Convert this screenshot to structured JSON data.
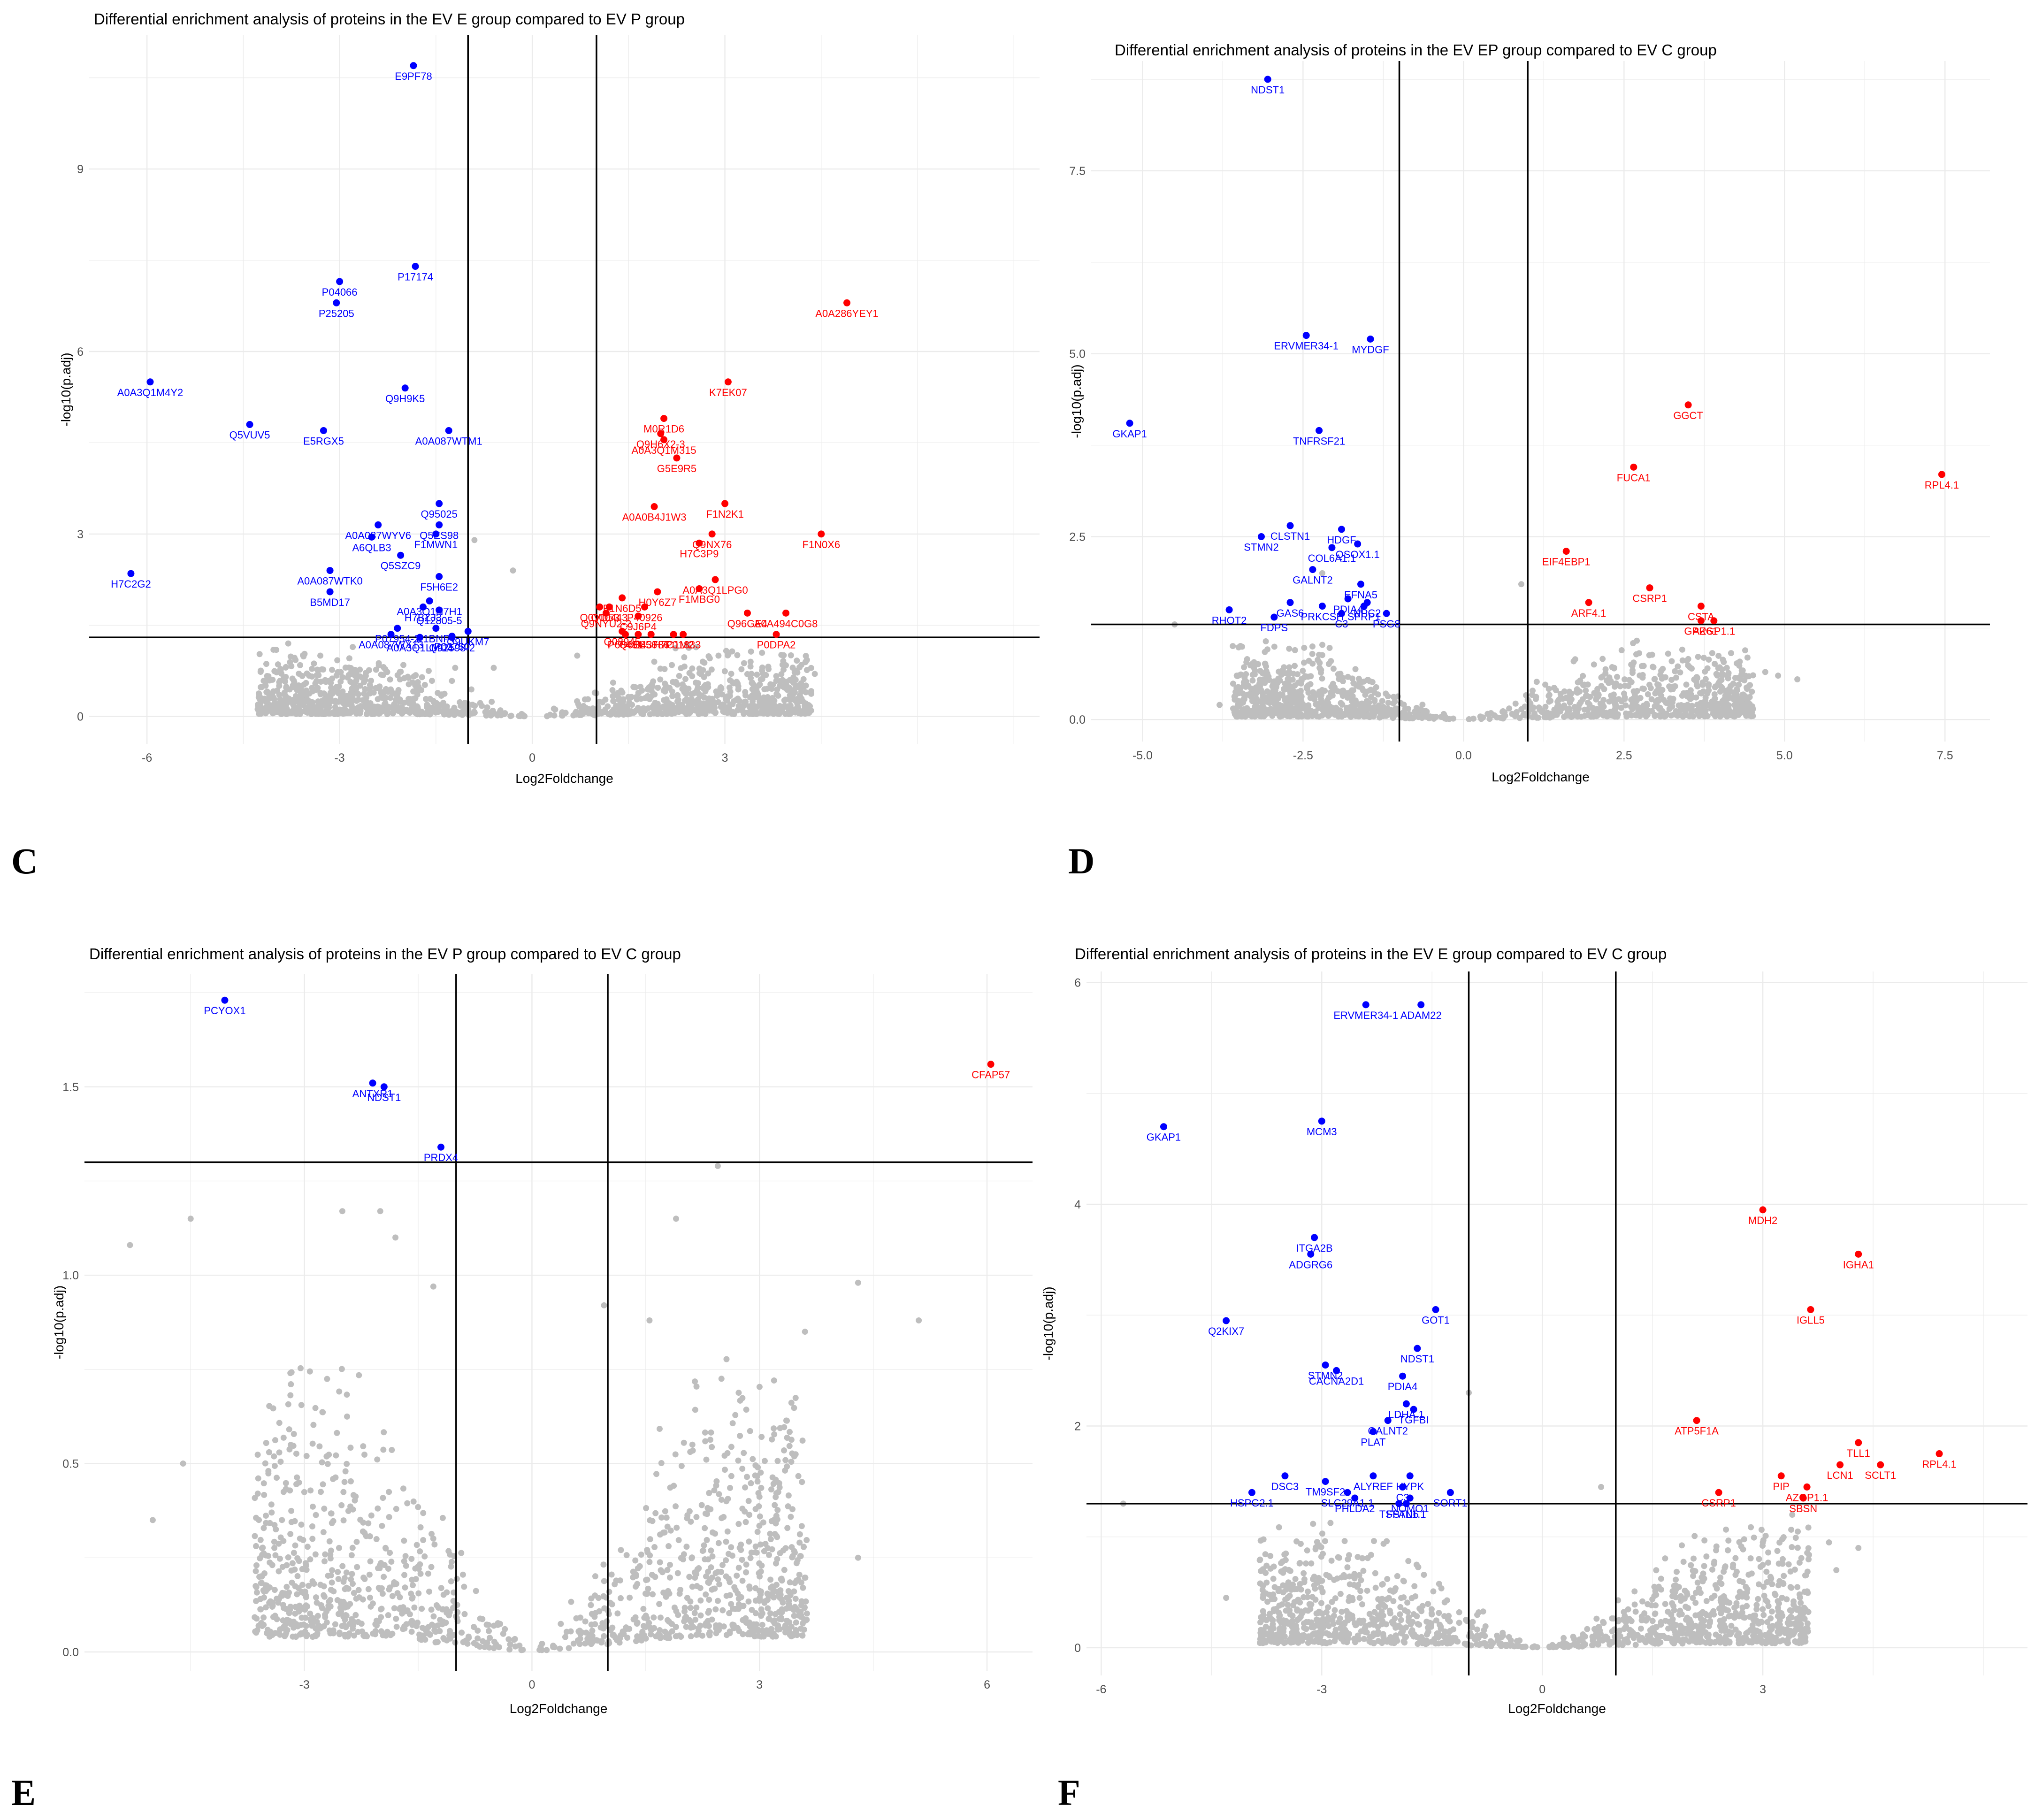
{
  "colors": {
    "down": "#0000ff",
    "up": "#ff0000",
    "ns": "#bebebe",
    "grid": "#ebebeb",
    "line": "#000000"
  },
  "chart_data": [
    {
      "type": "scatter",
      "panel": "C",
      "title": "Differential enrichment analysis of proteins in the EV E group compared to EV P group",
      "xlabel": "Log2Foldchange",
      "ylabel": "-log10(p.adj)",
      "xlim": [
        -6.9,
        7.9
      ],
      "ylim": [
        -0.45,
        11.2
      ],
      "xticks": [
        -6,
        -3,
        0,
        3
      ],
      "yticks": [
        0,
        3,
        6,
        9
      ],
      "vlines": [
        -1,
        1
      ],
      "hline": 1.3,
      "cloud_ymax": 1.2,
      "ns_extra": [
        [
          -3.8,
          1.2
        ],
        [
          -3.3,
          1.0
        ],
        [
          -1.2,
          0.8
        ],
        [
          -0.9,
          2.9
        ],
        [
          -0.6,
          0.8
        ],
        [
          -0.3,
          2.4
        ],
        [
          0.7,
          1.0
        ],
        [
          1.9,
          0.9
        ],
        [
          2.9,
          1.0
        ],
        [
          3.4,
          0.9
        ],
        [
          4.4,
          0.7
        ]
      ],
      "down": [
        {
          "label": "E9PF78",
          "x": -1.85,
          "y": 10.7
        },
        {
          "label": "P04066",
          "x": -3.0,
          "y": 7.15
        },
        {
          "label": "P17174",
          "x": -1.82,
          "y": 7.4
        },
        {
          "label": "P25205",
          "x": -3.05,
          "y": 6.8
        },
        {
          "label": "A0A3Q1M4Y2",
          "x": -5.95,
          "y": 5.5
        },
        {
          "label": "Q9H9K5",
          "x": -1.98,
          "y": 5.4
        },
        {
          "label": "Q5VUV5",
          "x": -4.4,
          "y": 4.8
        },
        {
          "label": "E5RGX5",
          "x": -3.25,
          "y": 4.7
        },
        {
          "label": "A0A087WTM1",
          "x": -1.3,
          "y": 4.7
        },
        {
          "label": "Q95025",
          "x": -1.45,
          "y": 3.5
        },
        {
          "label": "Q5ES98",
          "x": -1.45,
          "y": 3.15
        },
        {
          "label": "A0A087WYV6",
          "x": -2.4,
          "y": 3.15
        },
        {
          "label": "F1MWN1",
          "x": -1.5,
          "y": 3.0
        },
        {
          "label": "A6QLB3",
          "x": -2.5,
          "y": 2.95
        },
        {
          "label": "Q5SZC9",
          "x": -2.05,
          "y": 2.65
        },
        {
          "label": "A0A087WTK0",
          "x": -3.15,
          "y": 2.4
        },
        {
          "label": "H7C2G2",
          "x": -6.25,
          "y": 2.35
        },
        {
          "label": "F5H6E2",
          "x": -1.45,
          "y": 2.3
        },
        {
          "label": "A0A3Q1N7H1",
          "x": -1.6,
          "y": 1.9
        },
        {
          "label": "B5MD17",
          "x": -3.15,
          "y": 2.05
        },
        {
          "label": "H7BZJ3",
          "x": -1.7,
          "y": 1.8
        },
        {
          "label": "Q12805-5",
          "x": -1.45,
          "y": 1.75
        },
        {
          "label": "Q9UKM7",
          "x": -1.0,
          "y": 1.4
        },
        {
          "label": "E1BNP7",
          "x": -1.5,
          "y": 1.45
        },
        {
          "label": "P07954-2",
          "x": -2.1,
          "y": 1.45
        },
        {
          "label": "P02750",
          "x": -1.25,
          "y": 1.32
        },
        {
          "label": "A0A087WX13",
          "x": -2.2,
          "y": 1.35
        },
        {
          "label": "A0A3Q1LMU4",
          "x": -1.75,
          "y": 1.3
        },
        {
          "label": "Q92598-2",
          "x": -1.25,
          "y": 1.3
        }
      ],
      "up": [
        {
          "label": "A0A286YEY1",
          "x": 4.9,
          "y": 6.8
        },
        {
          "label": "K7EK07",
          "x": 3.05,
          "y": 5.5
        },
        {
          "label": "M0R1D6",
          "x": 2.05,
          "y": 4.9
        },
        {
          "label": "Q9H6X2-3",
          "x": 2.0,
          "y": 4.65
        },
        {
          "label": "A0A3Q1M315",
          "x": 2.05,
          "y": 4.55
        },
        {
          "label": "G5E9R5",
          "x": 2.25,
          "y": 4.25
        },
        {
          "label": "F1N2K1",
          "x": 3.0,
          "y": 3.5
        },
        {
          "label": "A0A0B4J1W3",
          "x": 1.9,
          "y": 3.45
        },
        {
          "label": "F1N0X6",
          "x": 4.5,
          "y": 3.0
        },
        {
          "label": "Q9NX76",
          "x": 2.8,
          "y": 3.0
        },
        {
          "label": "H7C3P9",
          "x": 2.6,
          "y": 2.85
        },
        {
          "label": "A0A3Q1LPG0",
          "x": 2.85,
          "y": 2.25
        },
        {
          "label": "H0Y6Z7",
          "x": 1.95,
          "y": 2.05
        },
        {
          "label": "F1MBG0",
          "x": 2.6,
          "y": 2.1
        },
        {
          "label": "F1N6D5",
          "x": 1.4,
          "y": 1.95
        },
        {
          "label": "Q0VD53",
          "x": 1.05,
          "y": 1.8
        },
        {
          "label": "Q00443",
          "x": 1.2,
          "y": 1.8
        },
        {
          "label": "P40926",
          "x": 1.75,
          "y": 1.8
        },
        {
          "label": "Q9NYU2-2",
          "x": 1.15,
          "y": 1.7
        },
        {
          "label": "Q96GE4",
          "x": 3.35,
          "y": 1.7
        },
        {
          "label": "A0A494C0G8",
          "x": 3.95,
          "y": 1.7
        },
        {
          "label": "C9J6P4",
          "x": 1.65,
          "y": 1.65
        },
        {
          "label": "H7C1M2",
          "x": 2.2,
          "y": 1.35
        },
        {
          "label": "Q08945",
          "x": 1.4,
          "y": 1.4
        },
        {
          "label": "P0DPA2",
          "x": 3.8,
          "y": 1.35
        },
        {
          "label": "P68431",
          "x": 1.45,
          "y": 1.35
        },
        {
          "label": "Q6B856",
          "x": 1.65,
          "y": 1.35
        },
        {
          "label": "P01833",
          "x": 2.35,
          "y": 1.35
        },
        {
          "label": "O43786",
          "x": 1.85,
          "y": 1.35
        }
      ]
    },
    {
      "type": "scatter",
      "panel": "D",
      "title": "Differential enrichment analysis of proteins in the EV EP group compared to EV C group",
      "xlabel": "Log2Foldchange",
      "ylabel": "-log10(p.adj)",
      "xlim": [
        -5.8,
        8.2
      ],
      "ylim": [
        -0.3,
        9.0
      ],
      "xticks": [
        -5.0,
        -2.5,
        0.0,
        2.5,
        5.0,
        7.5
      ],
      "yticks": [
        0.0,
        2.5,
        5.0,
        7.5
      ],
      "vlines": [
        -1,
        1
      ],
      "hline": 1.3,
      "cloud_ymax": 1.1,
      "ns_extra": [
        [
          -4.5,
          1.3
        ],
        [
          -3.8,
          0.2
        ],
        [
          -2.2,
          2.0
        ],
        [
          0.9,
          1.85
        ],
        [
          3.8,
          0.7
        ],
        [
          4.7,
          0.65
        ],
        [
          5.2,
          0.55
        ],
        [
          4.9,
          0.6
        ]
      ],
      "down": [
        {
          "label": "NDST1",
          "x": -3.05,
          "y": 8.75
        },
        {
          "label": "ERVMER34-1",
          "x": -2.45,
          "y": 5.25
        },
        {
          "label": "MYDGF",
          "x": -1.45,
          "y": 5.2
        },
        {
          "label": "GKAP1",
          "x": -5.2,
          "y": 4.05
        },
        {
          "label": "TNFRSF21",
          "x": -2.25,
          "y": 3.95
        },
        {
          "label": "CLSTN1",
          "x": -2.7,
          "y": 2.65
        },
        {
          "label": "HDGF",
          "x": -1.9,
          "y": 2.6
        },
        {
          "label": "STMN2",
          "x": -3.15,
          "y": 2.5
        },
        {
          "label": "QSOX1.1",
          "x": -1.65,
          "y": 2.4
        },
        {
          "label": "COL6A1.1",
          "x": -2.05,
          "y": 2.35
        },
        {
          "label": "GALNT2",
          "x": -2.35,
          "y": 2.05
        },
        {
          "label": "EFNA5",
          "x": -1.6,
          "y": 1.85
        },
        {
          "label": "GAS6",
          "x": -2.7,
          "y": 1.6
        },
        {
          "label": "PDIA4",
          "x": -1.8,
          "y": 1.65
        },
        {
          "label": "NPC2",
          "x": -1.5,
          "y": 1.6
        },
        {
          "label": "RHOT2",
          "x": -3.65,
          "y": 1.5
        },
        {
          "label": "PRKCSH",
          "x": -2.2,
          "y": 1.55
        },
        {
          "label": "SFRP1",
          "x": -1.55,
          "y": 1.55
        },
        {
          "label": "FDPS",
          "x": -2.95,
          "y": 1.4
        },
        {
          "label": "C3",
          "x": -1.9,
          "y": 1.45
        },
        {
          "label": "PSG8",
          "x": -1.2,
          "y": 1.45
        }
      ],
      "up": [
        {
          "label": "GGCT",
          "x": 3.5,
          "y": 4.3
        },
        {
          "label": "FUCA1",
          "x": 2.65,
          "y": 3.45
        },
        {
          "label": "RPL4.1",
          "x": 7.45,
          "y": 3.35
        },
        {
          "label": "EIF4EBP1",
          "x": 1.6,
          "y": 2.3
        },
        {
          "label": "CSRP1",
          "x": 2.9,
          "y": 1.8
        },
        {
          "label": "ARF4.1",
          "x": 1.95,
          "y": 1.6
        },
        {
          "label": "CSTA",
          "x": 3.7,
          "y": 1.55
        },
        {
          "label": "GPR61",
          "x": 3.7,
          "y": 1.35
        },
        {
          "label": "AZGP1.1",
          "x": 3.9,
          "y": 1.35
        }
      ]
    },
    {
      "type": "scatter",
      "panel": "E",
      "title": "Differential enrichment analysis of proteins in the EV P group compared to EV C group",
      "xlabel": "Log2Foldchange",
      "ylabel": "-log10(p.adj)",
      "xlim": [
        -5.9,
        6.6
      ],
      "ylim": [
        -0.05,
        1.8
      ],
      "xticks": [
        -3,
        0,
        3,
        6
      ],
      "yticks": [
        0.0,
        0.5,
        1.0,
        1.5
      ],
      "vlines": [
        -1,
        1
      ],
      "hline": 1.3,
      "cloud_ymax": 0.8,
      "ns_extra": [
        [
          -5.3,
          1.08
        ],
        [
          -4.5,
          1.15
        ],
        [
          -5.0,
          0.35
        ],
        [
          -4.6,
          0.5
        ],
        [
          -2.5,
          1.17
        ],
        [
          -2.0,
          1.17
        ],
        [
          -1.8,
          1.1
        ],
        [
          -1.3,
          0.97
        ],
        [
          2.45,
          1.29
        ],
        [
          1.9,
          1.15
        ],
        [
          0.95,
          0.92
        ],
        [
          1.55,
          0.88
        ],
        [
          4.3,
          0.98
        ],
        [
          5.1,
          0.88
        ],
        [
          3.6,
          0.85
        ],
        [
          4.3,
          0.25
        ]
      ],
      "down": [
        {
          "label": "PCYOX1",
          "x": -4.05,
          "y": 1.73
        },
        {
          "label": "ANTXR1",
          "x": -2.1,
          "y": 1.51
        },
        {
          "label": "NDST1",
          "x": -1.95,
          "y": 1.5
        },
        {
          "label": "PRDX4",
          "x": -1.2,
          "y": 1.34
        }
      ],
      "up": [
        {
          "label": "CFAP57",
          "x": 6.05,
          "y": 1.56
        }
      ]
    },
    {
      "type": "scatter",
      "panel": "F",
      "title": "Differential enrichment analysis of proteins in the EV E group compared to EV C group",
      "xlabel": "Log2Foldchange",
      "ylabel": "-log10(p.adj)",
      "xlim": [
        -6.2,
        6.6
      ],
      "ylim": [
        -0.25,
        6.1
      ],
      "xticks": [
        -6,
        -3,
        0,
        3
      ],
      "yticks": [
        0,
        2,
        4,
        6
      ],
      "vlines": [
        -1,
        1
      ],
      "hline": 1.3,
      "cloud_ymax": 1.15,
      "ns_extra": [
        [
          -5.7,
          1.3
        ],
        [
          -4.3,
          0.45
        ],
        [
          -3.8,
          0.45
        ],
        [
          -1.0,
          2.3
        ],
        [
          0.8,
          1.45
        ],
        [
          3.0,
          0.95
        ],
        [
          3.9,
          0.95
        ],
        [
          3.4,
          1.2
        ],
        [
          4.3,
          0.9
        ],
        [
          4.0,
          0.7
        ]
      ],
      "down": [
        {
          "label": "ERVMER34-1",
          "x": -2.4,
          "y": 5.8
        },
        {
          "label": "ADAM22",
          "x": -1.65,
          "y": 5.8
        },
        {
          "label": "GKAP1",
          "x": -5.15,
          "y": 4.7
        },
        {
          "label": "MCM3",
          "x": -3.0,
          "y": 4.75
        },
        {
          "label": "ITGA2B",
          "x": -3.1,
          "y": 3.7
        },
        {
          "label": "ADGRG6",
          "x": -3.15,
          "y": 3.55
        },
        {
          "label": "GOT1",
          "x": -1.45,
          "y": 3.05
        },
        {
          "label": "Q2KIX7",
          "x": -4.3,
          "y": 2.95
        },
        {
          "label": "NDST1",
          "x": -1.7,
          "y": 2.7
        },
        {
          "label": "STMN2",
          "x": -2.95,
          "y": 2.55
        },
        {
          "label": "CACNA2D1",
          "x": -2.8,
          "y": 2.5
        },
        {
          "label": "PDIA4",
          "x": -1.9,
          "y": 2.45
        },
        {
          "label": "LDHA.1",
          "x": -1.85,
          "y": 2.2
        },
        {
          "label": "GALNT2",
          "x": -2.1,
          "y": 2.05
        },
        {
          "label": "TGFBI",
          "x": -1.75,
          "y": 2.15
        },
        {
          "label": "PLAT",
          "x": -2.3,
          "y": 1.95
        },
        {
          "label": "DSC3",
          "x": -3.5,
          "y": 1.55
        },
        {
          "label": "TM9SF2",
          "x": -2.95,
          "y": 1.5
        },
        {
          "label": "ALYREF",
          "x": -2.3,
          "y": 1.55
        },
        {
          "label": "HYPK",
          "x": -1.8,
          "y": 1.55
        },
        {
          "label": "HSPG2.1",
          "x": -3.95,
          "y": 1.4
        },
        {
          "label": "SLC29A1.1",
          "x": -2.65,
          "y": 1.4
        },
        {
          "label": "C3",
          "x": -1.9,
          "y": 1.45
        },
        {
          "label": "SORT1",
          "x": -1.25,
          "y": 1.4
        },
        {
          "label": "PHLDA2",
          "x": -2.55,
          "y": 1.35
        },
        {
          "label": "NOMO1",
          "x": -1.8,
          "y": 1.35
        },
        {
          "label": "TSPAN6",
          "x": -1.95,
          "y": 1.3
        },
        {
          "label": "FSTL1.1",
          "x": -1.85,
          "y": 1.3
        }
      ],
      "up": [
        {
          "label": "MDH2",
          "x": 3.0,
          "y": 3.95
        },
        {
          "label": "IGHA1",
          "x": 4.3,
          "y": 3.55
        },
        {
          "label": "IGLL5",
          "x": 3.65,
          "y": 3.05
        },
        {
          "label": "ATP5F1A",
          "x": 2.1,
          "y": 2.05
        },
        {
          "label": "TLL1",
          "x": 4.3,
          "y": 1.85
        },
        {
          "label": "RPL4.1",
          "x": 5.4,
          "y": 1.75
        },
        {
          "label": "LCN1",
          "x": 4.05,
          "y": 1.65
        },
        {
          "label": "SCLT1",
          "x": 4.6,
          "y": 1.65
        },
        {
          "label": "PIP",
          "x": 3.25,
          "y": 1.55
        },
        {
          "label": "AZGP1.1",
          "x": 3.6,
          "y": 1.45
        },
        {
          "label": "CSRP1",
          "x": 2.4,
          "y": 1.4
        },
        {
          "label": "SBSN",
          "x": 3.55,
          "y": 1.35
        }
      ]
    }
  ]
}
